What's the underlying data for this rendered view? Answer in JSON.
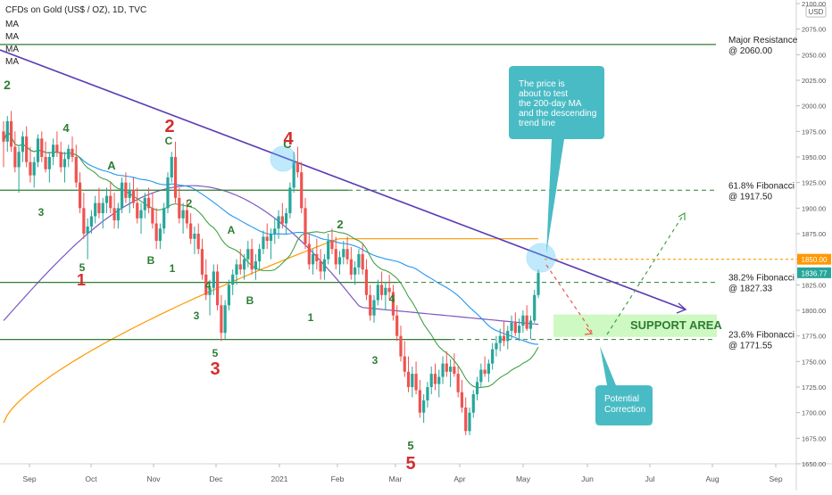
{
  "header": {
    "title": "CFDs on Gold (US$ / OZ), 1D, TVC",
    "indicators": [
      "MA",
      "MA",
      "MA",
      "MA"
    ],
    "currency": "USD"
  },
  "chart_data": {
    "type": "candlestick",
    "ylim": [
      1650,
      2100
    ],
    "y_ticks": [
      1650,
      1675,
      1700,
      1725,
      1750,
      1775,
      1800,
      1825,
      1850,
      1875,
      1900,
      1925,
      1950,
      1975,
      2000,
      2025,
      2050,
      2075,
      2100
    ],
    "x_ticks": [
      "Sep",
      "Oct",
      "Nov",
      "Dec",
      "2021",
      "Feb",
      "Mar",
      "Apr",
      "May",
      "Jun",
      "Jul",
      "Aug",
      "Sep"
    ],
    "price_badges": [
      {
        "value": "1850.00",
        "color": "#ff9800"
      },
      {
        "value": "1836.77",
        "color": "#26a69a"
      }
    ],
    "horizontal_levels": [
      {
        "value": 2060.0,
        "label_lines": [
          "Major Resistance",
          "@ 2060.00"
        ]
      },
      {
        "value": 1917.5,
        "label_lines": [
          "61.8% Fibonacci",
          "@ 1917.50"
        ]
      },
      {
        "value": 1827.33,
        "label_lines": [
          "38.2% Fibonacci",
          "@ 1827.33"
        ]
      },
      {
        "value": 1771.55,
        "label_lines": [
          "23.6% Fibonacci",
          "@ 1771.55"
        ]
      }
    ],
    "support_zone": {
      "label": "SUPPORT AREA",
      "y_range": [
        1774,
        1796
      ]
    },
    "callouts": [
      {
        "text_lines": [
          "The price is",
          "about to test",
          "the 200-day MA",
          "and the descending",
          "trend line"
        ],
        "color": "#3fb7c1"
      },
      {
        "text_lines": [
          "Potential",
          "Correction"
        ],
        "color": "#3fb7c1"
      }
    ],
    "wave_labels": [
      {
        "text": "2",
        "color": "#2e7d32"
      },
      {
        "text": "4",
        "color": "#2e7d32"
      },
      {
        "text": "3",
        "color": "#2e7d32"
      },
      {
        "text": "5",
        "color": "#2e7d32"
      },
      {
        "text": "1",
        "color": "#d32f2f"
      },
      {
        "text": "A",
        "color": "#2e7d32"
      },
      {
        "text": "B",
        "color": "#2e7d32"
      },
      {
        "text": "1",
        "color": "#2e7d32"
      },
      {
        "text": "2",
        "color": "#2e7d32"
      },
      {
        "text": "C",
        "color": "#2e7d32"
      },
      {
        "text": "2",
        "color": "#d32f2f"
      },
      {
        "text": "4",
        "color": "#2e7d32"
      },
      {
        "text": "3",
        "color": "#2e7d32"
      },
      {
        "text": "5",
        "color": "#2e7d32"
      },
      {
        "text": "3",
        "color": "#d32f2f"
      },
      {
        "text": "A",
        "color": "#2e7d32"
      },
      {
        "text": "B",
        "color": "#2e7d32"
      },
      {
        "text": "C",
        "color": "#2e7d32"
      },
      {
        "text": "4",
        "color": "#d32f2f"
      },
      {
        "text": "1",
        "color": "#2e7d32"
      },
      {
        "text": "2",
        "color": "#2e7d32"
      },
      {
        "text": "4",
        "color": "#2e7d32"
      },
      {
        "text": "3",
        "color": "#2e7d32"
      },
      {
        "text": "5",
        "color": "#2e7d32"
      },
      {
        "text": "5",
        "color": "#d32f2f"
      }
    ],
    "candles": [
      [
        1975,
        1985,
        1940,
        1965
      ],
      [
        1965,
        1990,
        1955,
        1985
      ],
      [
        1985,
        1995,
        1955,
        1960
      ],
      [
        1960,
        1975,
        1935,
        1940
      ],
      [
        1940,
        1960,
        1915,
        1955
      ],
      [
        1955,
        1975,
        1945,
        1970
      ],
      [
        1970,
        1980,
        1940,
        1945
      ],
      [
        1945,
        1960,
        1925,
        1932
      ],
      [
        1932,
        1950,
        1920,
        1945
      ],
      [
        1945,
        1972,
        1940,
        1968
      ],
      [
        1968,
        1975,
        1945,
        1950
      ],
      [
        1950,
        1965,
        1935,
        1938
      ],
      [
        1938,
        1955,
        1925,
        1950
      ],
      [
        1950,
        1968,
        1942,
        1962
      ],
      [
        1962,
        1975,
        1950,
        1955
      ],
      [
        1955,
        1965,
        1935,
        1940
      ],
      [
        1940,
        1955,
        1925,
        1948
      ],
      [
        1948,
        1962,
        1940,
        1958
      ],
      [
        1958,
        1970,
        1945,
        1950
      ],
      [
        1950,
        1962,
        1920,
        1925
      ],
      [
        1925,
        1935,
        1895,
        1900
      ],
      [
        1900,
        1915,
        1870,
        1875
      ],
      [
        1875,
        1890,
        1850,
        1882
      ],
      [
        1882,
        1898,
        1875,
        1892
      ],
      [
        1892,
        1912,
        1885,
        1905
      ],
      [
        1905,
        1920,
        1890,
        1895
      ],
      [
        1895,
        1910,
        1880,
        1905
      ],
      [
        1905,
        1920,
        1895,
        1912
      ],
      [
        1912,
        1925,
        1895,
        1900
      ],
      [
        1900,
        1915,
        1880,
        1888
      ],
      [
        1888,
        1905,
        1880,
        1900
      ],
      [
        1900,
        1930,
        1895,
        1925
      ],
      [
        1925,
        1935,
        1905,
        1910
      ],
      [
        1910,
        1925,
        1895,
        1918
      ],
      [
        1918,
        1930,
        1900,
        1905
      ],
      [
        1905,
        1920,
        1885,
        1890
      ],
      [
        1890,
        1905,
        1875,
        1898
      ],
      [
        1898,
        1915,
        1890,
        1910
      ],
      [
        1910,
        1920,
        1895,
        1900
      ],
      [
        1900,
        1915,
        1880,
        1885
      ],
      [
        1885,
        1900,
        1860,
        1868
      ],
      [
        1868,
        1885,
        1860,
        1880
      ],
      [
        1880,
        1905,
        1875,
        1900
      ],
      [
        1900,
        1935,
        1895,
        1930
      ],
      [
        1930,
        1955,
        1925,
        1950
      ],
      [
        1950,
        1965,
        1905,
        1910
      ],
      [
        1910,
        1920,
        1885,
        1890
      ],
      [
        1890,
        1905,
        1875,
        1898
      ],
      [
        1898,
        1908,
        1880,
        1885
      ],
      [
        1885,
        1895,
        1865,
        1870
      ],
      [
        1870,
        1882,
        1855,
        1875
      ],
      [
        1875,
        1885,
        1855,
        1860
      ],
      [
        1860,
        1870,
        1830,
        1835
      ],
      [
        1835,
        1850,
        1810,
        1815
      ],
      [
        1815,
        1830,
        1795,
        1822
      ],
      [
        1822,
        1845,
        1815,
        1838
      ],
      [
        1838,
        1845,
        1800,
        1805
      ],
      [
        1805,
        1815,
        1770,
        1778
      ],
      [
        1778,
        1810,
        1772,
        1805
      ],
      [
        1805,
        1830,
        1800,
        1825
      ],
      [
        1825,
        1840,
        1815,
        1835
      ],
      [
        1835,
        1850,
        1825,
        1845
      ],
      [
        1845,
        1860,
        1835,
        1840
      ],
      [
        1840,
        1855,
        1830,
        1850
      ],
      [
        1850,
        1868,
        1842,
        1860
      ],
      [
        1860,
        1870,
        1835,
        1840
      ],
      [
        1840,
        1855,
        1830,
        1848
      ],
      [
        1848,
        1865,
        1840,
        1860
      ],
      [
        1860,
        1878,
        1855,
        1872
      ],
      [
        1872,
        1885,
        1860,
        1868
      ],
      [
        1868,
        1880,
        1850,
        1875
      ],
      [
        1875,
        1890,
        1865,
        1880
      ],
      [
        1880,
        1898,
        1870,
        1892
      ],
      [
        1892,
        1905,
        1880,
        1885
      ],
      [
        1885,
        1900,
        1875,
        1895
      ],
      [
        1895,
        1925,
        1890,
        1920
      ],
      [
        1920,
        1955,
        1915,
        1945
      ],
      [
        1945,
        1960,
        1930,
        1935
      ],
      [
        1935,
        1945,
        1895,
        1900
      ],
      [
        1900,
        1910,
        1860,
        1865
      ],
      [
        1865,
        1875,
        1840,
        1845
      ],
      [
        1845,
        1860,
        1835,
        1855
      ],
      [
        1855,
        1870,
        1840,
        1848
      ],
      [
        1848,
        1860,
        1830,
        1838
      ],
      [
        1838,
        1855,
        1830,
        1850
      ],
      [
        1850,
        1875,
        1845,
        1868
      ],
      [
        1868,
        1880,
        1855,
        1860
      ],
      [
        1860,
        1872,
        1840,
        1845
      ],
      [
        1845,
        1858,
        1835,
        1852
      ],
      [
        1852,
        1868,
        1845,
        1860
      ],
      [
        1860,
        1872,
        1845,
        1850
      ],
      [
        1850,
        1862,
        1830,
        1835
      ],
      [
        1835,
        1848,
        1825,
        1842
      ],
      [
        1842,
        1860,
        1835,
        1855
      ],
      [
        1855,
        1865,
        1835,
        1840
      ],
      [
        1840,
        1850,
        1810,
        1815
      ],
      [
        1815,
        1825,
        1790,
        1795
      ],
      [
        1795,
        1815,
        1788,
        1810
      ],
      [
        1810,
        1830,
        1805,
        1825
      ],
      [
        1825,
        1838,
        1810,
        1815
      ],
      [
        1815,
        1828,
        1800,
        1822
      ],
      [
        1822,
        1835,
        1810,
        1818
      ],
      [
        1818,
        1825,
        1790,
        1795
      ],
      [
        1795,
        1805,
        1770,
        1775
      ],
      [
        1775,
        1785,
        1750,
        1755
      ],
      [
        1755,
        1770,
        1735,
        1740
      ],
      [
        1740,
        1755,
        1720,
        1725
      ],
      [
        1725,
        1745,
        1715,
        1738
      ],
      [
        1738,
        1750,
        1718,
        1722
      ],
      [
        1722,
        1732,
        1695,
        1700
      ],
      [
        1700,
        1718,
        1690,
        1712
      ],
      [
        1712,
        1730,
        1705,
        1725
      ],
      [
        1725,
        1745,
        1718,
        1738
      ],
      [
        1738,
        1748,
        1722,
        1728
      ],
      [
        1728,
        1742,
        1715,
        1735
      ],
      [
        1735,
        1755,
        1728,
        1748
      ],
      [
        1748,
        1760,
        1735,
        1740
      ],
      [
        1740,
        1752,
        1725,
        1745
      ],
      [
        1745,
        1758,
        1735,
        1738
      ],
      [
        1738,
        1745,
        1715,
        1720
      ],
      [
        1720,
        1732,
        1700,
        1705
      ],
      [
        1705,
        1715,
        1678,
        1682
      ],
      [
        1682,
        1705,
        1678,
        1700
      ],
      [
        1700,
        1722,
        1695,
        1718
      ],
      [
        1718,
        1735,
        1712,
        1730
      ],
      [
        1730,
        1748,
        1725,
        1742
      ],
      [
        1742,
        1755,
        1735,
        1738
      ],
      [
        1738,
        1752,
        1730,
        1748
      ],
      [
        1748,
        1768,
        1742,
        1762
      ],
      [
        1762,
        1775,
        1755,
        1768
      ],
      [
        1768,
        1782,
        1760,
        1775
      ],
      [
        1775,
        1790,
        1765,
        1770
      ],
      [
        1770,
        1785,
        1762,
        1780
      ],
      [
        1780,
        1795,
        1772,
        1788
      ],
      [
        1788,
        1798,
        1775,
        1778
      ],
      [
        1778,
        1792,
        1770,
        1785
      ],
      [
        1785,
        1800,
        1778,
        1795
      ],
      [
        1795,
        1805,
        1780,
        1782
      ],
      [
        1782,
        1795,
        1772,
        1790
      ],
      [
        1790,
        1820,
        1788,
        1815
      ],
      [
        1815,
        1840,
        1812,
        1836.77
      ]
    ]
  }
}
